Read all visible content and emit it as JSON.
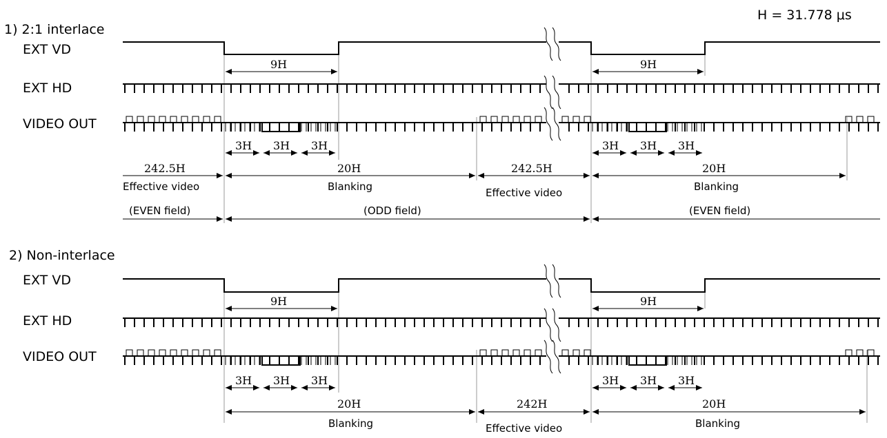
{
  "h_note": "H = 31.778 μs",
  "sections": [
    {
      "title": "1) 2:1 interlace",
      "signals": {
        "vd": "EXT VD",
        "hd": "EXT HD",
        "video": "VIDEO OUT"
      },
      "vd_low_label": "9H",
      "sub_label": "3H",
      "spans": [
        {
          "value": "242.5H",
          "caption": "Effective video"
        },
        {
          "value": "20H",
          "caption": "Blanking"
        },
        {
          "value": "242.5H",
          "caption": "Effective video"
        },
        {
          "value": "20H",
          "caption": "Blanking"
        }
      ],
      "fields": [
        "(EVEN field)",
        "(ODD field)",
        "(EVEN field)"
      ]
    },
    {
      "title": "2) Non-interlace",
      "signals": {
        "vd": "EXT VD",
        "hd": "EXT HD",
        "video": "VIDEO OUT"
      },
      "vd_low_label": "9H",
      "sub_label": "3H",
      "spans": [
        {
          "value": "20H",
          "caption": "Blanking"
        },
        {
          "value": "242H",
          "caption": "Effective video"
        },
        {
          "value": "20H",
          "caption": "Blanking"
        }
      ]
    }
  ]
}
